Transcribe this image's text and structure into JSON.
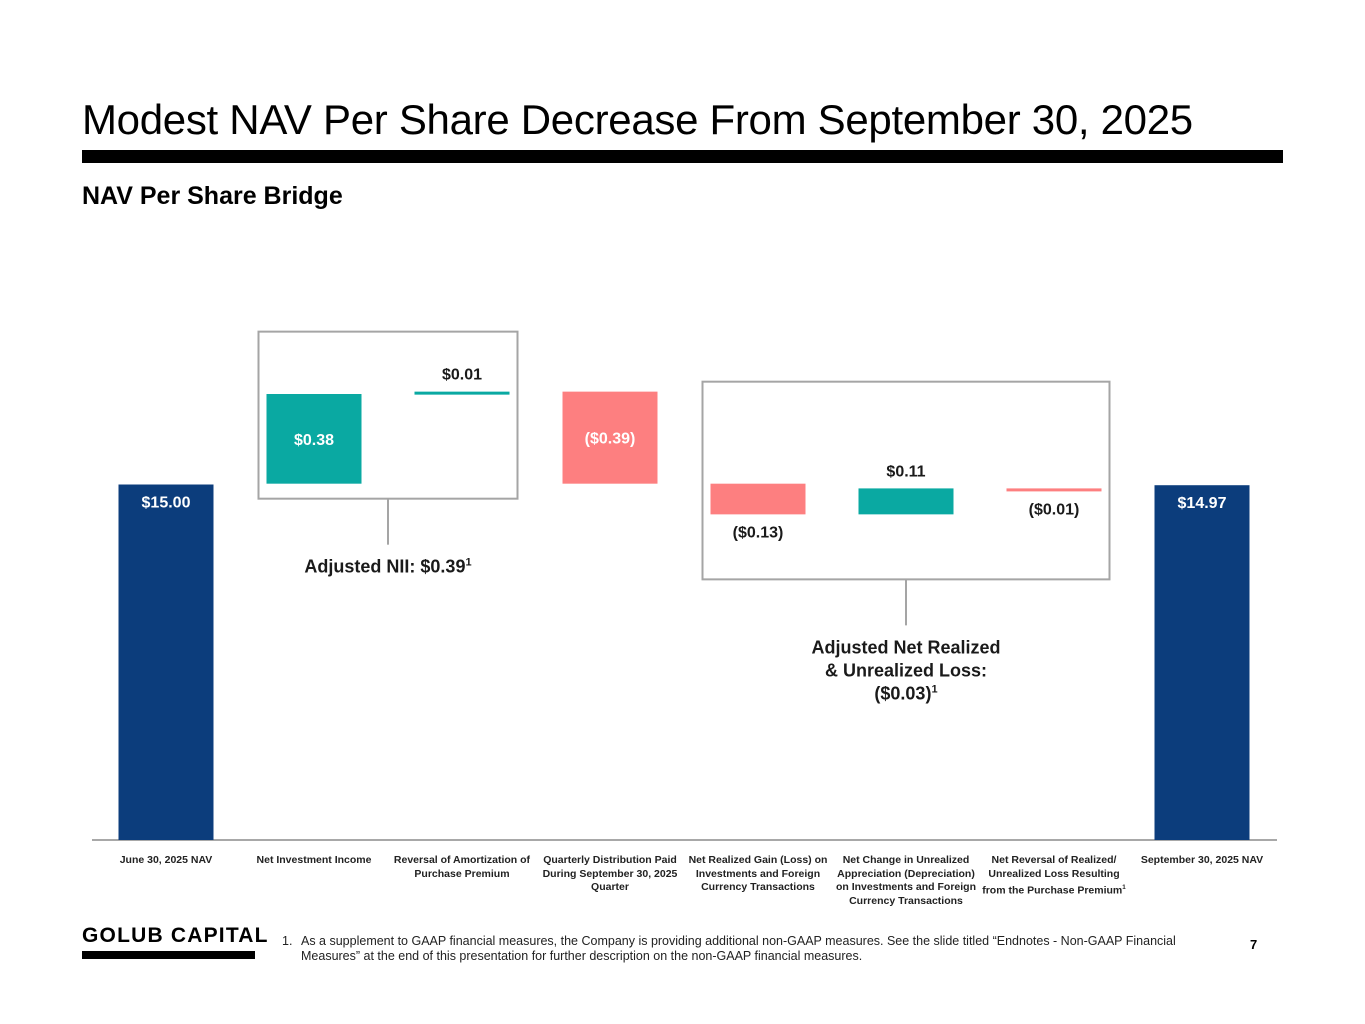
{
  "page": {
    "title": "Modest NAV Per Share Decrease From September 30, 2025",
    "subtitle": "NAV Per Share Bridge",
    "logo": "GOLUB CAPITAL",
    "page_number": "7",
    "footnote_number": "1.",
    "footnote_text": "As a supplement to GAAP financial measures, the Company is providing additional non-GAAP measures. See the slide titled “Endnotes - Non-GAAP Financial Measures” at the end of this presentation for further description on the non-GAAP financial measures."
  },
  "colors": {
    "total": "#0c3d7c",
    "increase": "#0aa9a2",
    "decrease": "#fd7f80",
    "box": "#a5a5a5",
    "axis": "#8c8c8c"
  },
  "chart_data": {
    "type": "waterfall",
    "title": "NAV Per Share Bridge",
    "categories": [
      "June 30, 2025 NAV",
      "Net Investment Income",
      "Reversal of Amortization of Purchase Premium",
      "Quarterly Distribution Paid During September 30, 2025 Quarter",
      "Net Realized Gain (Loss) on Investments and Foreign Currency Transactions",
      "Net Change in Unrealized Appreciation (Depreciation) on Investments and Foreign Currency Transactions",
      "Net Reversal of Realized/ Unrealized Loss Resulting from the Purchase Premium",
      "September 30, 2025 NAV"
    ],
    "category_footnote_marks": [
      "",
      "",
      "",
      "",
      "",
      "",
      "1",
      ""
    ],
    "values": [
      15.0,
      0.38,
      0.01,
      -0.39,
      -0.13,
      0.11,
      -0.01,
      14.97
    ],
    "kinds": [
      "total",
      "increase",
      "increase",
      "decrease",
      "decrease",
      "increase",
      "decrease",
      "total"
    ],
    "data_labels": [
      "$15.00",
      "$0.38",
      "$0.01",
      "($0.39)",
      "($0.13)",
      "$0.11",
      "($0.01)",
      "$14.97"
    ],
    "annotations": [
      {
        "id": "adjusted-nii",
        "covers": [
          1,
          2
        ],
        "lines": [
          "Adjusted NII: $0.39"
        ],
        "footnote_mark": "1"
      },
      {
        "id": "adjusted-net-realized",
        "covers": [
          4,
          5,
          6
        ],
        "lines": [
          "Adjusted Net Realized",
          "& Unrealized Loss:",
          "($0.03)"
        ],
        "footnote_mark": "1"
      }
    ],
    "xlabel": "",
    "ylabel": "",
    "grid": false,
    "legend": "none"
  }
}
